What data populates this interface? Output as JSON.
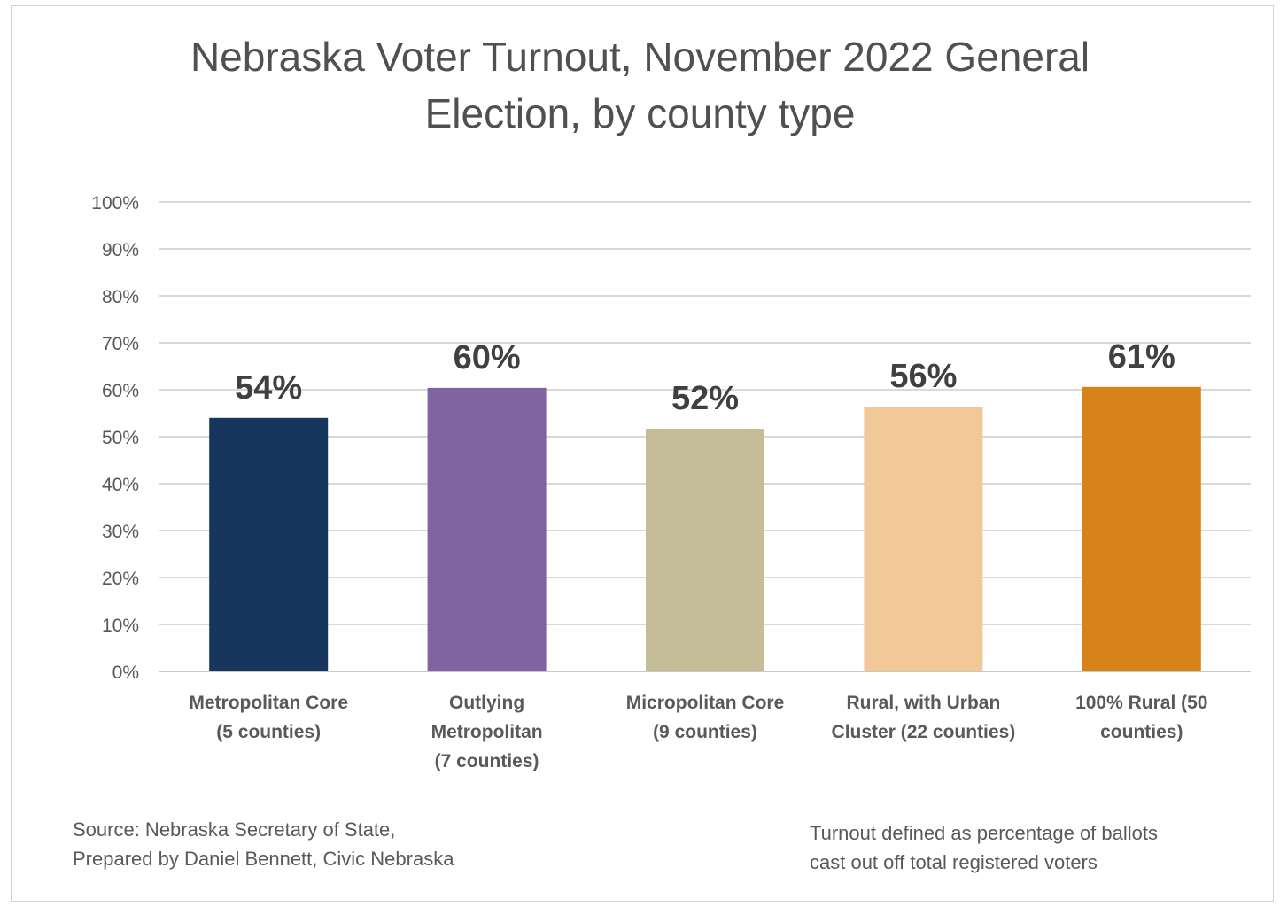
{
  "chart_data": {
    "type": "bar",
    "title_lines": [
      "Nebraska Voter Turnout, November 2022 General",
      "Election, by county type"
    ],
    "categories": [
      [
        "Metropolitan Core",
        "(5 counties)"
      ],
      [
        "Outlying",
        "Metropolitan",
        "(7 counties)"
      ],
      [
        "Micropolitan Core",
        "(9 counties)"
      ],
      [
        "Rural, with Urban",
        "Cluster (22 counties)"
      ],
      [
        "100% Rural (50",
        "counties)"
      ]
    ],
    "values": [
      54,
      60.4,
      51.7,
      56.4,
      60.6
    ],
    "data_labels": [
      "54%",
      "60%",
      "52%",
      "56%",
      "61%"
    ],
    "colors": [
      "#17365d",
      "#8064a2",
      "#c4bd97",
      "#f1c897",
      "#d8821a"
    ],
    "ylim": [
      0,
      100
    ],
    "y_ticks": [
      "0%",
      "10%",
      "20%",
      "30%",
      "40%",
      "50%",
      "60%",
      "70%",
      "80%",
      "90%",
      "100%"
    ],
    "grid": true,
    "legend": "none"
  },
  "notes": {
    "source_lines": [
      "Source: Nebraska Secretary of State,",
      "Prepared by Daniel Bennett,  Civic Nebraska"
    ],
    "definition_lines": [
      "Turnout defined as percentage of ballots",
      "cast out off total registered voters"
    ]
  }
}
